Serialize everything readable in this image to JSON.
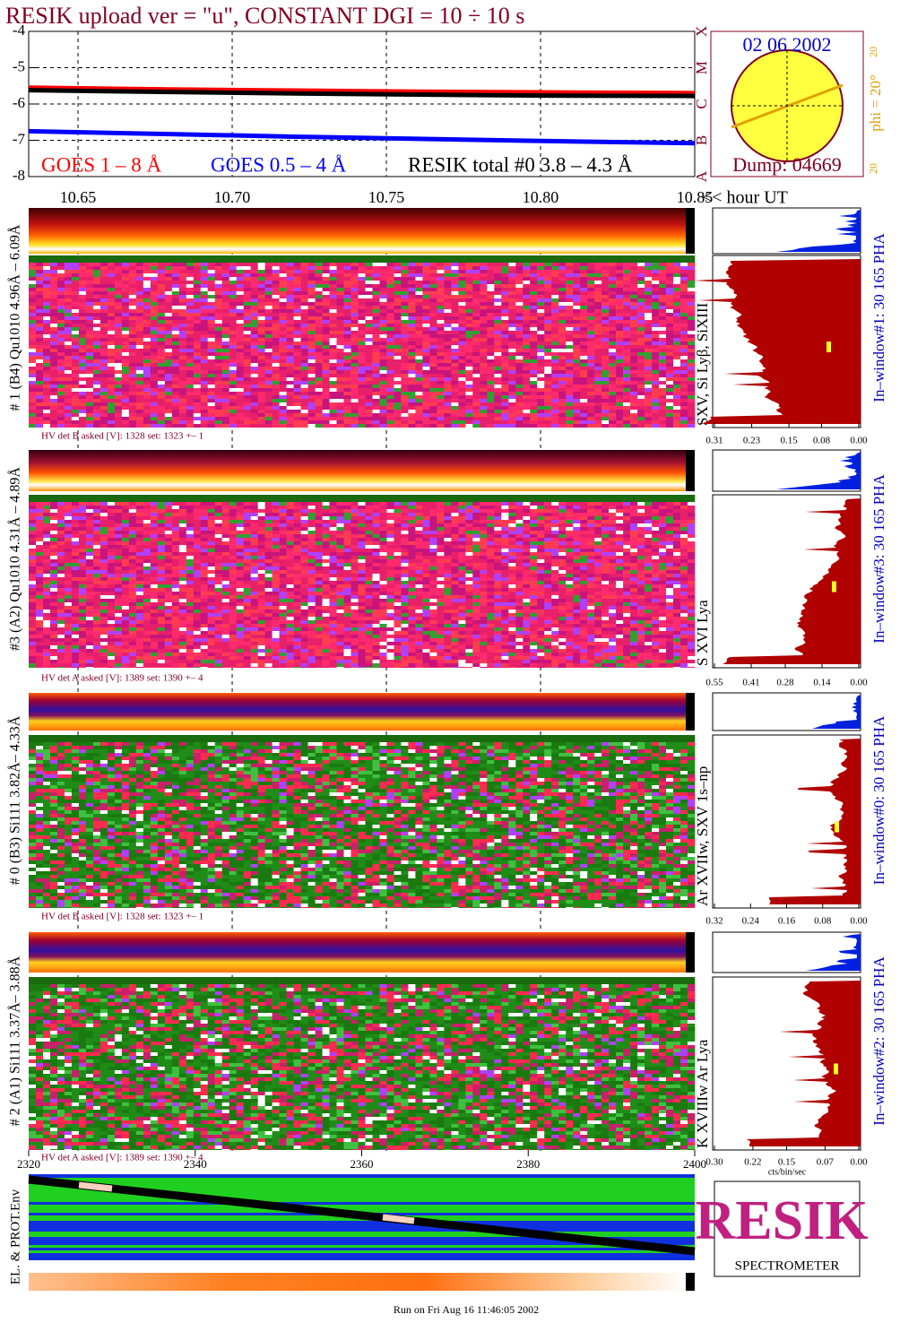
{
  "title": "RESIK upload ver = \"u\", CONSTANT  DGI =  10 ÷  10 s",
  "chart_data": {
    "type": "line",
    "x_label": "<< hour UT",
    "xlim": [
      10.634,
      10.85
    ],
    "xticks": [
      10.65,
      {
        "value": 10.7,
        "label": "10.70"
      },
      10.75,
      {
        "value": 10.8,
        "label": "10.80"
      },
      10.85
    ],
    "ylim": [
      -8,
      -4
    ],
    "yticks": [
      -8,
      -7,
      -6,
      -5,
      -4
    ],
    "grid": true,
    "x": [
      10.634,
      10.68,
      10.72,
      10.76,
      10.8,
      10.85
    ],
    "series": [
      {
        "name": "GOES 1 – 8 Å",
        "color": "#ff0000",
        "values": [
          -5.55,
          -5.6,
          -5.63,
          -5.66,
          -5.68,
          -5.7
        ]
      },
      {
        "name": "GOES 0.5 – 4 Å",
        "color": "#0000ff",
        "values": [
          -6.75,
          -6.83,
          -6.9,
          -6.96,
          -7.02,
          -7.08
        ]
      },
      {
        "name": "RESIK total #0  3.8 – 4.3 Å",
        "color": "#000000",
        "values": [
          -5.62,
          -5.67,
          -5.71,
          -5.74,
          -5.77,
          -5.78
        ]
      }
    ],
    "class_ticks": [
      {
        "value": -8,
        "label": "A"
      },
      {
        "value": -7,
        "label": "B"
      },
      {
        "value": -6,
        "label": "C"
      },
      {
        "value": -5,
        "label": "M"
      },
      {
        "value": -4,
        "label": "X"
      }
    ]
  },
  "sun": {
    "date": "02 06 2002",
    "dump": "Dump: 04669",
    "phi": "phi = 20°",
    "phi_ticks": [
      "20",
      "20"
    ]
  },
  "panels": [
    {
      "label": "# 1 (B4) Qu1010 4.96Å – 6.09Å",
      "lines": "SXV, Si Lyβ, SiXIII",
      "hv": "HV det B asked [V]:  1328 set:  1323 +–    1",
      "window": "In–window#1:   30 165 PHA",
      "hist_xlim": [
        0.31,
        0
      ],
      "hist_xticks": [
        0.31,
        0.23,
        0.15,
        0.08,
        {
          "value": 0,
          "label": "0.00"
        }
      ]
    },
    {
      "label": "#3 (A2) Qu1010  4.31Å – 4.89Å",
      "lines": "S XVI Lya",
      "hv": "HV det A asked [V]:  1389 set:  1390 +–    4",
      "window": "In–window#3:   30 165 PHA",
      "hist_xlim": [
        0.55,
        0
      ],
      "hist_xticks": [
        0.55,
        0.41,
        0.28,
        0.14,
        {
          "value": 0,
          "label": "0.00"
        }
      ]
    },
    {
      "label": "# 0 (B3) Si111  3.82Å– 4.33Å",
      "lines": "Ar XVIIw,  SXV  1s–np",
      "hv": "HV det B asked [V]:  1328 set:  1323 +–    1",
      "window": "In–window#0:   30 165 PHA",
      "hist_xlim": [
        0.32,
        0
      ],
      "hist_xticks": [
        0.32,
        0.24,
        0.16,
        0.08,
        {
          "value": 0,
          "label": "0.00"
        }
      ]
    },
    {
      "label": "# 2 (A1) Si111  3.37Å– 3.88Å",
      "lines": "K XVIIIw   Ar Lya",
      "hv": "HV det A asked [V]:  1389 set:  1390 +–    4",
      "window": "In–window#2:   30 165 PHA",
      "hist_xlim": [
        0.3,
        0
      ],
      "hist_xticks": [
        {
          "value": 0.3,
          "label": "0.30"
        },
        0.22,
        0.15,
        0.07,
        {
          "value": 0,
          "label": "0.00"
        }
      ]
    }
  ],
  "hist_xlabel": "cts/bin/sec",
  "env": {
    "label": "EL. & PROT.Env",
    "xlim": [
      2320,
      2400
    ],
    "xticks": [
      2320,
      2340,
      2360,
      2380,
      2400
    ]
  },
  "logo": {
    "name": "RESIK",
    "bottom": "SPECTROMETER"
  },
  "footer": "Run on Fri Aug 16 11:46:05 2002"
}
